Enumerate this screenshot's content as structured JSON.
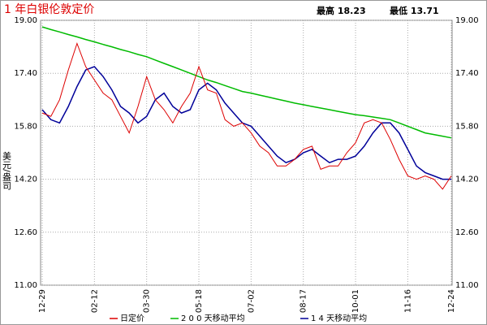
{
  "chart_data": {
    "type": "line",
    "title": "1 年白银伦敦定价",
    "high_label": "最高 18.23",
    "low_label": "最低 13.71",
    "y_label": "美元/盎司",
    "categories": [
      "12-29",
      null,
      null,
      null,
      null,
      null,
      "02-12",
      null,
      null,
      null,
      null,
      null,
      "03-30",
      null,
      null,
      null,
      null,
      null,
      "05-18",
      null,
      null,
      null,
      null,
      null,
      "07-02",
      null,
      null,
      null,
      null,
      null,
      "08-17",
      null,
      null,
      null,
      null,
      null,
      "10-01",
      null,
      null,
      null,
      null,
      null,
      "11-16",
      null,
      null,
      null,
      null,
      "12-24"
    ],
    "series": [
      {
        "name": "日定价",
        "color": "#dd0000",
        "values": [
          16.2,
          16.1,
          16.6,
          17.5,
          18.3,
          17.6,
          17.2,
          16.8,
          16.6,
          16.1,
          15.6,
          16.4,
          17.3,
          16.6,
          16.3,
          15.9,
          16.4,
          16.8,
          17.6,
          16.9,
          16.8,
          16.0,
          15.8,
          15.9,
          15.6,
          15.2,
          15.0,
          14.6,
          14.6,
          14.8,
          15.1,
          15.2,
          14.5,
          14.6,
          14.6,
          15.0,
          15.3,
          15.9,
          16.0,
          15.9,
          15.4,
          14.8,
          14.3,
          14.2,
          14.3,
          14.2,
          13.9,
          14.3
        ]
      },
      {
        "name": "2 0 0 天移动平均",
        "color": "#00bb00",
        "values": [
          18.8,
          18.72,
          18.65,
          18.57,
          18.5,
          18.42,
          18.35,
          18.27,
          18.2,
          18.12,
          18.05,
          17.97,
          17.9,
          17.8,
          17.7,
          17.6,
          17.5,
          17.4,
          17.3,
          17.2,
          17.12,
          17.03,
          16.94,
          16.85,
          16.8,
          16.74,
          16.68,
          16.62,
          16.56,
          16.5,
          16.45,
          16.4,
          16.35,
          16.3,
          16.25,
          16.2,
          16.15,
          16.12,
          16.08,
          16.04,
          16.0,
          15.9,
          15.8,
          15.7,
          15.6,
          15.55,
          15.5,
          15.45
        ]
      },
      {
        "name": "1 4 天移动平均",
        "color": "#000099",
        "values": [
          16.3,
          16.0,
          15.9,
          16.4,
          17.0,
          17.5,
          17.6,
          17.3,
          16.9,
          16.4,
          16.2,
          15.9,
          16.1,
          16.6,
          16.8,
          16.4,
          16.2,
          16.3,
          16.9,
          17.1,
          16.9,
          16.5,
          16.2,
          15.9,
          15.8,
          15.5,
          15.2,
          14.9,
          14.7,
          14.8,
          15.0,
          15.1,
          14.9,
          14.7,
          14.8,
          14.8,
          14.9,
          15.2,
          15.6,
          15.9,
          15.9,
          15.6,
          15.1,
          14.6,
          14.4,
          14.3,
          14.2,
          14.2
        ]
      }
    ],
    "ylim": [
      11,
      19
    ],
    "yticks": [
      {
        "value": 11,
        "label": "11.00"
      },
      {
        "value": 12.6,
        "label": "12.60"
      },
      {
        "value": 14.2,
        "label": "14.20"
      },
      {
        "value": 15.8,
        "label": "15.80"
      },
      {
        "value": 17.4,
        "label": "17.40"
      },
      {
        "value": 19,
        "label": "19.00"
      }
    ],
    "grid": true
  }
}
